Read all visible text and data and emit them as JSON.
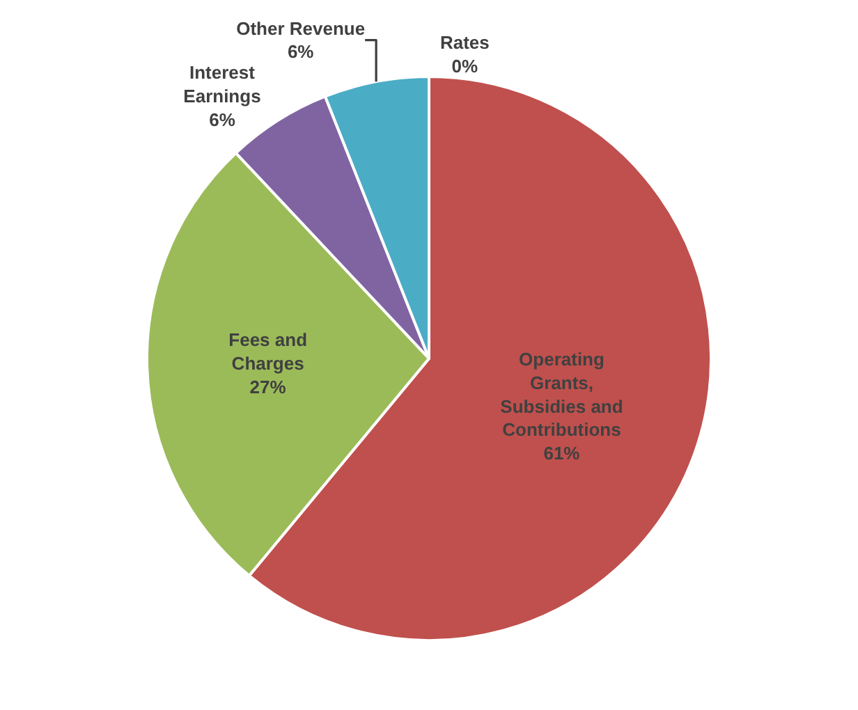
{
  "chart_data": {
    "type": "pie",
    "categories": [
      "Rates",
      "Operating Grants, Subsidies and Contributions",
      "Fees and Charges",
      "Interest Earnings",
      "Other Revenue"
    ],
    "values": [
      0,
      61,
      27,
      6,
      6
    ],
    "value_labels": [
      "0%",
      "61%",
      "27%",
      "6%",
      "6%"
    ],
    "colors": [
      "#f79646",
      "#c0504d",
      "#9bbb59",
      "#8064a2",
      "#4bacc6"
    ],
    "legend": false
  }
}
